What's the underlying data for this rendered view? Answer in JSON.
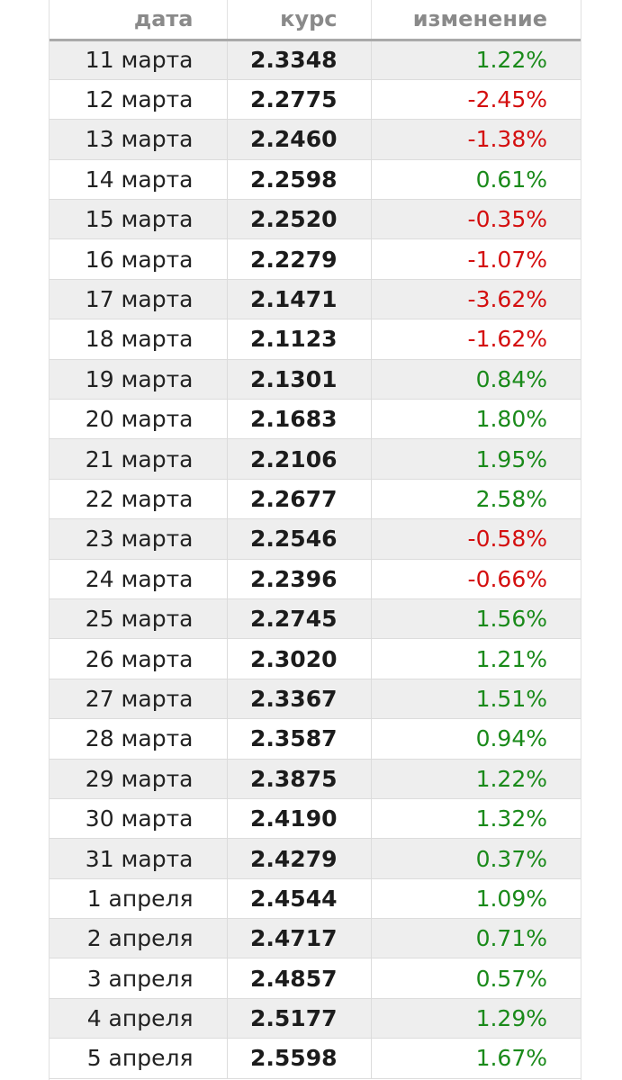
{
  "table": {
    "headers": {
      "date": "дата",
      "rate": "курс",
      "change": "изменение"
    },
    "colors": {
      "up": "#1a8a1a",
      "down": "#d40f0f"
    },
    "rows": [
      {
        "date": "11 марта",
        "rate": "2.3348",
        "change": "1.22%"
      },
      {
        "date": "12 марта",
        "rate": "2.2775",
        "change": "-2.45%"
      },
      {
        "date": "13 марта",
        "rate": "2.2460",
        "change": "-1.38%"
      },
      {
        "date": "14 марта",
        "rate": "2.2598",
        "change": "0.61%"
      },
      {
        "date": "15 марта",
        "rate": "2.2520",
        "change": "-0.35%"
      },
      {
        "date": "16 марта",
        "rate": "2.2279",
        "change": "-1.07%"
      },
      {
        "date": "17 марта",
        "rate": "2.1471",
        "change": "-3.62%"
      },
      {
        "date": "18 марта",
        "rate": "2.1123",
        "change": "-1.62%"
      },
      {
        "date": "19 марта",
        "rate": "2.1301",
        "change": "0.84%"
      },
      {
        "date": "20 марта",
        "rate": "2.1683",
        "change": "1.80%"
      },
      {
        "date": "21 марта",
        "rate": "2.2106",
        "change": "1.95%"
      },
      {
        "date": "22 марта",
        "rate": "2.2677",
        "change": "2.58%"
      },
      {
        "date": "23 марта",
        "rate": "2.2546",
        "change": "-0.58%"
      },
      {
        "date": "24 марта",
        "rate": "2.2396",
        "change": "-0.66%"
      },
      {
        "date": "25 марта",
        "rate": "2.2745",
        "change": "1.56%"
      },
      {
        "date": "26 марта",
        "rate": "2.3020",
        "change": "1.21%"
      },
      {
        "date": "27 марта",
        "rate": "2.3367",
        "change": "1.51%"
      },
      {
        "date": "28 марта",
        "rate": "2.3587",
        "change": "0.94%"
      },
      {
        "date": "29 марта",
        "rate": "2.3875",
        "change": "1.22%"
      },
      {
        "date": "30 марта",
        "rate": "2.4190",
        "change": "1.32%"
      },
      {
        "date": "31 марта",
        "rate": "2.4279",
        "change": "0.37%"
      },
      {
        "date": "1 апреля",
        "rate": "2.4544",
        "change": "1.09%"
      },
      {
        "date": "2 апреля",
        "rate": "2.4717",
        "change": "0.71%"
      },
      {
        "date": "3 апреля",
        "rate": "2.4857",
        "change": "0.57%"
      },
      {
        "date": "4 апреля",
        "rate": "2.5177",
        "change": "1.29%"
      },
      {
        "date": "5 апреля",
        "rate": "2.5598",
        "change": "1.67%"
      }
    ]
  }
}
